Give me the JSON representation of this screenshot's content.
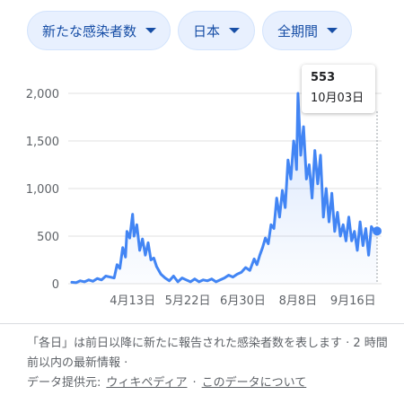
{
  "filters": {
    "metric": "新たな感染者数",
    "region": "日本",
    "period": "全期間"
  },
  "tooltip": {
    "value": "553",
    "date": "10月03日"
  },
  "footer": {
    "note": "「各日」は前日以降に新たに報告された感染者数を表します · 2 時間前以内の最新情報 ·",
    "source_label": "データ提供元:",
    "source_link": "ウィキペディア",
    "separator": "·",
    "about_link": "このデータについて"
  },
  "colors": {
    "line": "#4285f4",
    "chip_bg": "#e8f0fe",
    "chip_text": "#174ea6",
    "grid": "#e0e0e0"
  },
  "chart_data": {
    "type": "area",
    "ylim": [
      0,
      2000
    ],
    "yticks": [
      0,
      500,
      1000,
      1500,
      2000
    ],
    "ytick_labels": [
      "0",
      "500",
      "1,000",
      "1,500",
      "2,000"
    ],
    "x_start": "2020-03-01",
    "x_end": "2020-10-03",
    "xticks": [
      {
        "date": "2020-04-13",
        "label": "4月13日"
      },
      {
        "date": "2020-05-22",
        "label": "5月22日"
      },
      {
        "date": "2020-06-30",
        "label": "6月30日"
      },
      {
        "date": "2020-08-08",
        "label": "8月8日"
      },
      {
        "date": "2020-09-16",
        "label": "9月16日"
      }
    ],
    "series": [
      {
        "x": [
          "2020-03-01",
          "2020-03-04",
          "2020-03-07",
          "2020-03-10",
          "2020-03-13",
          "2020-03-16",
          "2020-03-19",
          "2020-03-22",
          "2020-03-25",
          "2020-03-28",
          "2020-03-31",
          "2020-04-02",
          "2020-04-04",
          "2020-04-06",
          "2020-04-08",
          "2020-04-09",
          "2020-04-11",
          "2020-04-13",
          "2020-04-14",
          "2020-04-16",
          "2020-04-18",
          "2020-04-20",
          "2020-04-22",
          "2020-04-24",
          "2020-04-26",
          "2020-04-28",
          "2020-04-30",
          "2020-05-03",
          "2020-05-06",
          "2020-05-09",
          "2020-05-12",
          "2020-05-15",
          "2020-05-18",
          "2020-05-21",
          "2020-05-24",
          "2020-05-27",
          "2020-05-30",
          "2020-06-02",
          "2020-06-05",
          "2020-06-08",
          "2020-06-11",
          "2020-06-14",
          "2020-06-17",
          "2020-06-20",
          "2020-06-23",
          "2020-06-26",
          "2020-06-29",
          "2020-07-02",
          "2020-07-05",
          "2020-07-08",
          "2020-07-10",
          "2020-07-12",
          "2020-07-14",
          "2020-07-16",
          "2020-07-18",
          "2020-07-20",
          "2020-07-22",
          "2020-07-24",
          "2020-07-26",
          "2020-07-28",
          "2020-07-30",
          "2020-08-01",
          "2020-08-03",
          "2020-08-05",
          "2020-08-06",
          "2020-08-07",
          "2020-08-08",
          "2020-08-10",
          "2020-08-12",
          "2020-08-14",
          "2020-08-16",
          "2020-08-18",
          "2020-08-20",
          "2020-08-22",
          "2020-08-24",
          "2020-08-26",
          "2020-08-28",
          "2020-08-30",
          "2020-09-01",
          "2020-09-03",
          "2020-09-05",
          "2020-09-07",
          "2020-09-09",
          "2020-09-11",
          "2020-09-13",
          "2020-09-15",
          "2020-09-17",
          "2020-09-19",
          "2020-09-21",
          "2020-09-23",
          "2020-09-25",
          "2020-09-27",
          "2020-09-29",
          "2020-10-01",
          "2020-10-03"
        ],
        "y": [
          15,
          10,
          30,
          20,
          40,
          25,
          55,
          40,
          80,
          70,
          60,
          200,
          160,
          380,
          280,
          550,
          480,
          730,
          500,
          620,
          350,
          470,
          300,
          430,
          250,
          270,
          180,
          100,
          60,
          30,
          80,
          20,
          60,
          40,
          20,
          50,
          20,
          40,
          30,
          50,
          20,
          40,
          60,
          90,
          70,
          100,
          120,
          170,
          140,
          260,
          200,
          300,
          380,
          480,
          420,
          620,
          580,
          900,
          700,
          980,
          800,
          1300,
          1100,
          1500,
          1400,
          1200,
          2000,
          1350,
          1650,
          1100,
          1250,
          900,
          1400,
          1050,
          1350,
          700,
          1000,
          650,
          950,
          550,
          750,
          500,
          620,
          450,
          700,
          450,
          550,
          350,
          650,
          400,
          580,
          300,
          600,
          553,
          553
        ]
      }
    ]
  }
}
